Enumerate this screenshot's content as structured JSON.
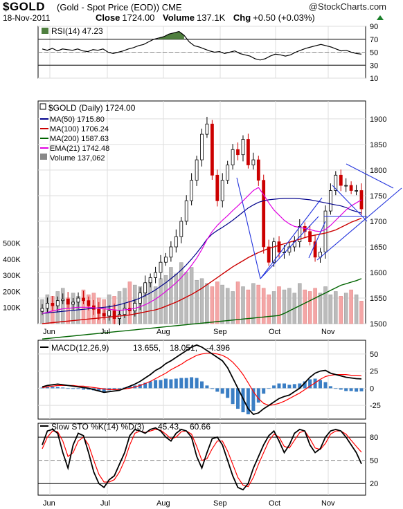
{
  "header": {
    "symbol": "$GOLD",
    "name": "(Gold - Spot Price (EOD)) CME",
    "brand": "@StockCharts.com",
    "date": "18-Nov-2011",
    "close_label": "Close",
    "close": "1724.00",
    "volume_label": "Volume",
    "volume": "137.1K",
    "chg_label": "Chg",
    "chg": "+0.50 (+0.03%)"
  },
  "chart_data": [
    {
      "type": "line",
      "title": "RSI(14) 47.23",
      "ylim": [
        10,
        90
      ],
      "yticks": [
        90,
        70,
        50,
        30,
        10
      ],
      "guides": [
        70,
        50,
        30
      ],
      "shaded_above": 70,
      "series": [
        {
          "name": "RSI(14)",
          "color": "#000000",
          "values": [
            55,
            53,
            56,
            52,
            55,
            54,
            53,
            55,
            52,
            51,
            54,
            53,
            55,
            50,
            48,
            50,
            52,
            55,
            57,
            60,
            62,
            66,
            70,
            72,
            74,
            78,
            80,
            82,
            76,
            66,
            60,
            58,
            55,
            52,
            50,
            51,
            48,
            50,
            52,
            48,
            46,
            44,
            40,
            38,
            40,
            44,
            47,
            46,
            44,
            46,
            50,
            53,
            56,
            58,
            60,
            62,
            60,
            58,
            55,
            52,
            53,
            50,
            48,
            47
          ]
        }
      ]
    },
    {
      "type": "candlestick",
      "title": "$GOLD (Daily) 1724.00",
      "ylim": [
        1500,
        1935
      ],
      "yticks": [
        1900,
        1850,
        1800,
        1750,
        1700,
        1650,
        1600,
        1550,
        1500
      ],
      "xticks": [
        "Jun",
        "Jul",
        "Aug",
        "Sep",
        "Oct",
        "Nov"
      ],
      "volume_ticks": [
        "500K",
        "400K",
        "300K",
        "200K",
        "100K"
      ],
      "legend": [
        {
          "label": "MA(50) 1715.80",
          "color": "#00008b"
        },
        {
          "label": "MA(100) 1706.24",
          "color": "#cc0000"
        },
        {
          "label": "MA(200) 1587.63",
          "color": "#006400"
        },
        {
          "label": "EMA(21) 1742.48",
          "color": "#e000e0"
        },
        {
          "label": "Volume 137,062",
          "color": "#888888"
        }
      ],
      "close": [
        1530,
        1540,
        1535,
        1545,
        1548,
        1538,
        1542,
        1550,
        1545,
        1535,
        1528,
        1520,
        1515,
        1525,
        1510,
        1518,
        1530,
        1525,
        1540,
        1560,
        1580,
        1590,
        1600,
        1620,
        1630,
        1650,
        1670,
        1700,
        1740,
        1780,
        1820,
        1870,
        1890,
        1790,
        1740,
        1780,
        1810,
        1840,
        1830,
        1860,
        1810,
        1820,
        1780,
        1650,
        1620,
        1660,
        1640,
        1640,
        1650,
        1660,
        1690,
        1680,
        1660,
        1630,
        1640,
        1720,
        1760,
        1790,
        1770,
        1770,
        1760,
        1760,
        1724
      ],
      "ma50": [
        1520,
        1521,
        1522,
        1523,
        1524,
        1525,
        1526,
        1527,
        1528,
        1529,
        1530,
        1531,
        1532,
        1533,
        1535,
        1537,
        1540,
        1543,
        1546,
        1550,
        1555,
        1560,
        1566,
        1573,
        1580,
        1588,
        1596,
        1605,
        1615,
        1626,
        1638,
        1651,
        1665,
        1675,
        1682,
        1688,
        1695,
        1702,
        1710,
        1718,
        1726,
        1732,
        1737,
        1740,
        1742,
        1743,
        1744,
        1745,
        1745,
        1745,
        1744,
        1743,
        1742,
        1740,
        1738,
        1736,
        1734,
        1732,
        1730,
        1727,
        1722,
        1719,
        1716
      ],
      "ma100": [
        1500,
        1501,
        1502,
        1503,
        1504,
        1505,
        1506,
        1507,
        1508,
        1509,
        1510,
        1511,
        1512,
        1513,
        1514,
        1515,
        1516,
        1517,
        1519,
        1521,
        1523,
        1525,
        1527,
        1530,
        1534,
        1538,
        1542,
        1547,
        1552,
        1557,
        1563,
        1569,
        1576,
        1583,
        1590,
        1597,
        1604,
        1611,
        1617,
        1623,
        1629,
        1634,
        1639,
        1643,
        1647,
        1650,
        1653,
        1656,
        1659,
        1662,
        1665,
        1668,
        1671,
        1673,
        1675,
        1677,
        1680,
        1683,
        1688,
        1693,
        1698,
        1702,
        1706
      ],
      "ma200": [
        1470,
        1471,
        1472,
        1473,
        1474,
        1475,
        1476,
        1477,
        1478,
        1479,
        1480,
        1481,
        1482,
        1483,
        1484,
        1485,
        1486,
        1487,
        1488,
        1489,
        1490,
        1491,
        1492,
        1493,
        1494,
        1495,
        1496,
        1497,
        1498,
        1499,
        1500,
        1501,
        1502,
        1503,
        1504,
        1505,
        1506,
        1507,
        1508,
        1509,
        1510,
        1511,
        1512,
        1513,
        1514,
        1515,
        1516,
        1520,
        1525,
        1530,
        1535,
        1540,
        1545,
        1550,
        1555,
        1560,
        1565,
        1570,
        1575,
        1578,
        1581,
        1584,
        1588
      ],
      "ema21": [
        1520,
        1522,
        1525,
        1527,
        1529,
        1530,
        1531,
        1532,
        1532,
        1532,
        1531,
        1530,
        1529,
        1528,
        1527,
        1526,
        1527,
        1528,
        1530,
        1533,
        1537,
        1542,
        1548,
        1555,
        1563,
        1571,
        1580,
        1590,
        1601,
        1614,
        1628,
        1645,
        1664,
        1680,
        1692,
        1702,
        1711,
        1721,
        1730,
        1740,
        1750,
        1760,
        1766,
        1752,
        1736,
        1722,
        1712,
        1702,
        1695,
        1690,
        1688,
        1686,
        1684,
        1681,
        1680,
        1684,
        1692,
        1702,
        1712,
        1722,
        1730,
        1736,
        1742
      ],
      "volume": [
        150,
        180,
        170,
        200,
        220,
        160,
        190,
        170,
        210,
        180,
        190,
        160,
        150,
        180,
        170,
        200,
        220,
        260,
        240,
        230,
        250,
        270,
        230,
        280,
        300,
        350,
        310,
        380,
        320,
        350,
        270,
        280,
        250,
        230,
        260,
        240,
        220,
        200,
        260,
        230,
        210,
        250,
        240,
        220,
        180,
        200,
        230,
        210,
        220,
        190,
        250,
        210,
        200,
        220,
        190,
        230,
        180,
        200,
        170,
        190,
        210,
        180,
        140
      ]
    },
    {
      "type": "line",
      "title": "MACD(12,26,9) 13.655, 18.051, -4.396",
      "title_parts": [
        "MACD(12,26,9)",
        "13.655,",
        "18.051,",
        "-4.396"
      ],
      "ylim": [
        -45,
        70
      ],
      "yticks": [
        50,
        25,
        0,
        -25
      ],
      "series": [
        {
          "name": "MACD",
          "color": "#000000",
          "values": [
            2,
            4,
            5,
            6,
            5,
            4,
            3,
            2,
            1,
            0,
            -2,
            -4,
            -6,
            -5,
            -4,
            -3,
            0,
            3,
            6,
            10,
            15,
            20,
            26,
            30,
            36,
            40,
            45,
            50,
            55,
            60,
            63,
            60,
            55,
            50,
            45,
            40,
            30,
            15,
            0,
            -15,
            -30,
            -38,
            -36,
            -30,
            -25,
            -20,
            -15,
            -12,
            -10,
            -5,
            0,
            8,
            16,
            22,
            25,
            26,
            22,
            20,
            18,
            16,
            15,
            14,
            13.655
          ]
        },
        {
          "name": "Signal",
          "color": "#ff0000",
          "values": [
            1,
            2,
            3,
            4,
            4,
            4,
            4,
            3,
            3,
            2,
            1,
            0,
            -1,
            -2,
            -2,
            -2,
            -1,
            0,
            2,
            4,
            7,
            10,
            14,
            18,
            22,
            27,
            31,
            35,
            40,
            44,
            48,
            50,
            51,
            51,
            50,
            48,
            44,
            38,
            30,
            20,
            8,
            -5,
            -15,
            -22,
            -25,
            -24,
            -22,
            -19,
            -15,
            -11,
            -7,
            -2,
            3,
            8,
            13,
            17,
            19,
            20,
            20,
            20,
            19,
            19,
            18.051
          ]
        },
        {
          "name": "Histogram",
          "color": "#3a7ec4",
          "values": [
            1,
            2,
            2,
            2,
            1,
            0,
            -1,
            -1,
            -2,
            -2,
            -3,
            -4,
            -5,
            -3,
            -2,
            -1,
            1,
            3,
            4,
            6,
            8,
            10,
            12,
            12,
            14,
            13,
            14,
            15,
            15,
            16,
            15,
            10,
            4,
            -1,
            -5,
            -8,
            -14,
            -23,
            -30,
            -35,
            -38,
            -33,
            -21,
            -8,
            0,
            4,
            7,
            7,
            5,
            6,
            7,
            10,
            13,
            14,
            12,
            9,
            3,
            0,
            -2,
            -4,
            -4,
            -5,
            -4.396
          ]
        }
      ]
    },
    {
      "type": "line",
      "title": "Slow STO %K(14) %D(3) 45.43, 60.66",
      "title_parts": [
        "Slow STO %K(14) %D(3)",
        "45.43,",
        "60.66"
      ],
      "ylim": [
        5,
        98
      ],
      "yticks": [
        80,
        50,
        20
      ],
      "guides": [
        80,
        50,
        20
      ],
      "xticks": [
        "Jun",
        "Jul",
        "Aug",
        "Sep",
        "Oct",
        "Nov"
      ],
      "series": [
        {
          "name": "%K",
          "color": "#000000",
          "values": [
            70,
            88,
            90,
            85,
            60,
            40,
            70,
            85,
            82,
            60,
            35,
            20,
            15,
            25,
            30,
            45,
            60,
            82,
            90,
            88,
            85,
            90,
            92,
            88,
            80,
            75,
            85,
            90,
            88,
            80,
            55,
            40,
            60,
            78,
            80,
            70,
            50,
            30,
            15,
            12,
            20,
            40,
            55,
            70,
            82,
            88,
            75,
            60,
            70,
            85,
            90,
            88,
            70,
            60,
            65,
            80,
            88,
            90,
            88,
            80,
            70,
            60,
            45.43
          ]
        },
        {
          "name": "%D",
          "color": "#ff0000",
          "values": [
            65,
            80,
            88,
            87,
            75,
            55,
            60,
            75,
            80,
            70,
            50,
            32,
            22,
            22,
            25,
            35,
            50,
            70,
            85,
            88,
            86,
            88,
            90,
            89,
            84,
            78,
            80,
            87,
            88,
            84,
            68,
            50,
            52,
            65,
            75,
            75,
            62,
            45,
            28,
            18,
            16,
            28,
            45,
            60,
            75,
            84,
            80,
            68,
            66,
            76,
            86,
            88,
            78,
            66,
            64,
            72,
            84,
            88,
            88,
            84,
            76,
            68,
            60.66
          ]
        }
      ]
    }
  ]
}
